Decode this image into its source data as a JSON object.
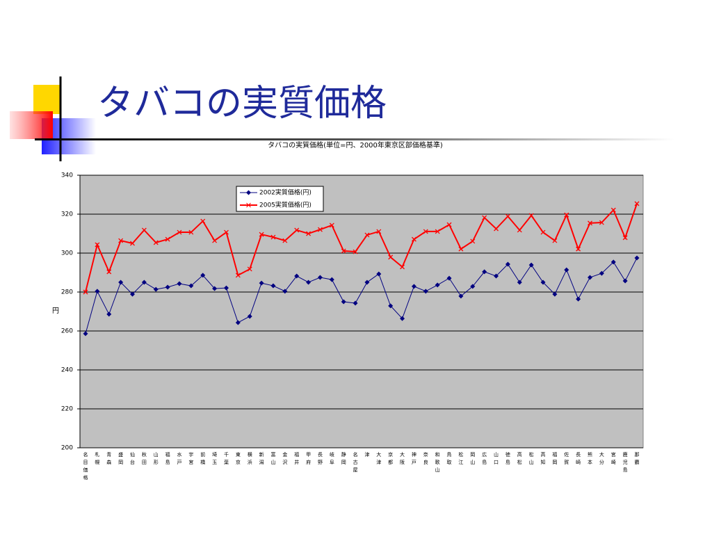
{
  "slide": {
    "title": "タバコの実質価格"
  },
  "chart_data": {
    "type": "line",
    "title": "タバコの実質価格(単位=円、2000年東京区部価格基準)",
    "y_label": "円",
    "categories": [
      "名目価格",
      "札幌",
      "青森",
      "盛岡",
      "仙台",
      "秋田",
      "山形",
      "福島",
      "水戸",
      "宇宮",
      "前橋",
      "埼玉",
      "千葉",
      "東京",
      "横浜",
      "新潟",
      "富山",
      "金沢",
      "福井",
      "甲府",
      "長野",
      "岐阜",
      "静岡",
      "名古屋",
      "津",
      "大津",
      "京都",
      "大阪",
      "神戸",
      "奈良",
      "和歌山",
      "鳥取",
      "松江",
      "岡山",
      "広島",
      "山口",
      "徳島",
      "高松",
      "松山",
      "高知",
      "福岡",
      "佐賀",
      "長崎",
      "熊本",
      "大分",
      "宮崎",
      "鹿児島",
      "那覇"
    ],
    "series": [
      {
        "name": "2002実質価格(円)",
        "color": "#000080",
        "marker": "diamond",
        "values": [
          258.6,
          280.4,
          268.6,
          285,
          278.9,
          285,
          281.4,
          282.5,
          284.3,
          283.2,
          288.6,
          281.8,
          282.1,
          264.3,
          267.5,
          284.6,
          283.2,
          280.4,
          288.2,
          285,
          287.5,
          286.4,
          275,
          274.3,
          285,
          289.3,
          272.9,
          266.4,
          282.9,
          280.4,
          283.6,
          287.1,
          277.9,
          282.9,
          290.4,
          288.2,
          294.3,
          285,
          293.9,
          285,
          278.9,
          291.4,
          276.4,
          287.5,
          289.6,
          295.4,
          285.7,
          297.5
        ]
      },
      {
        "name": "2005実質価格(円)",
        "color": "#ff0000",
        "marker": "x",
        "values": [
          280,
          304.3,
          290.4,
          306.4,
          305,
          311.8,
          305.4,
          307.1,
          310.7,
          310.7,
          316.4,
          306.4,
          310.7,
          288.6,
          291.8,
          309.6,
          308.2,
          306.4,
          311.8,
          310,
          312.1,
          314.3,
          301.1,
          300.7,
          309.3,
          311.1,
          297.9,
          292.9,
          307.1,
          311.1,
          311.1,
          314.6,
          302.1,
          306.1,
          318.2,
          312.5,
          318.9,
          311.8,
          319.3,
          310.7,
          306.4,
          319.6,
          302.1,
          315.4,
          315.7,
          322.1,
          307.9,
          325.4
        ]
      }
    ],
    "ylim": [
      200,
      340
    ],
    "yticks": [
      200,
      220,
      240,
      260,
      280,
      300,
      320,
      340
    ],
    "grid": true
  }
}
